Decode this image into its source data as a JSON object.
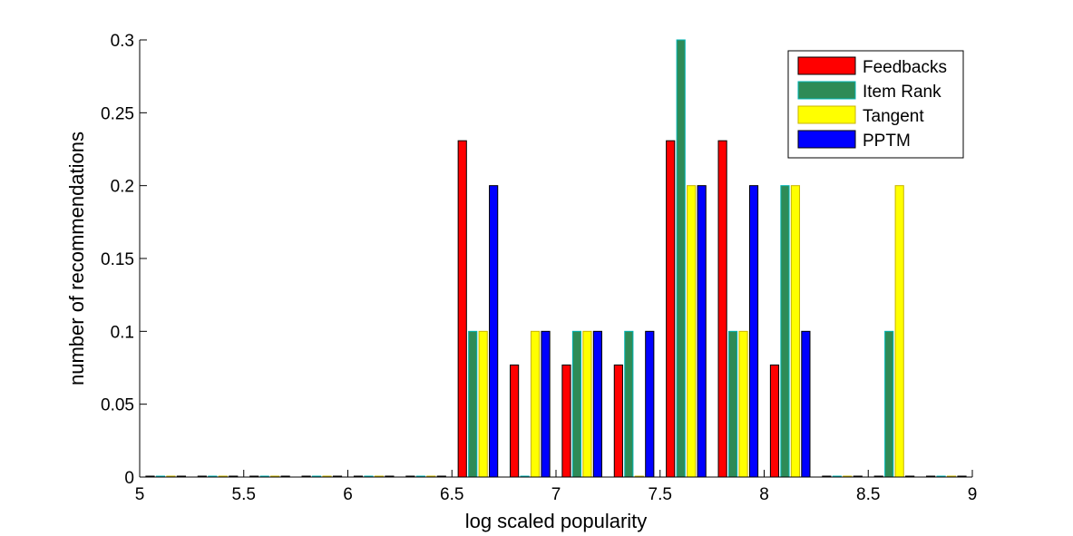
{
  "chart_data": {
    "type": "bar",
    "title": "",
    "xlabel": "log scaled popularity",
    "ylabel": "number of recommendations",
    "xlim": [
      5,
      9
    ],
    "ylim": [
      0,
      0.3
    ],
    "xticks": [
      "5",
      "5.5",
      "6",
      "6.5",
      "7",
      "7.5",
      "8",
      "8.5",
      "9"
    ],
    "yticks": [
      "0",
      "0.05",
      "0.1",
      "0.15",
      "0.2",
      "0.25",
      "0.3"
    ],
    "grid": false,
    "legend_position": "top-right",
    "bin_centers": [
      5.125,
      5.375,
      5.625,
      5.875,
      6.125,
      6.375,
      6.625,
      6.875,
      7.125,
      7.375,
      7.625,
      7.875,
      8.125,
      8.375,
      8.625,
      8.875
    ],
    "series": [
      {
        "name": "Feedbacks",
        "color": "#ff0000",
        "edge": "#000000",
        "values": [
          0,
          0,
          0,
          0,
          0,
          0,
          0.2308,
          0.0769,
          0.0769,
          0.0769,
          0.2308,
          0.2308,
          0.0769,
          0,
          0,
          0
        ]
      },
      {
        "name": "Item Rank",
        "color": "#2e8b57",
        "edge": "#00b4b4",
        "values": [
          0,
          0,
          0,
          0,
          0,
          0,
          0.1,
          0,
          0.1,
          0.1,
          0.3,
          0.1,
          0.2,
          0,
          0.1,
          0
        ]
      },
      {
        "name": "Tangent",
        "color": "#ffff00",
        "edge": "#c8b400",
        "values": [
          0,
          0,
          0,
          0,
          0,
          0,
          0.1,
          0.1,
          0.1,
          0,
          0.2,
          0.1,
          0.2,
          0,
          0.2,
          0
        ]
      },
      {
        "name": "PPTM",
        "color": "#0000ff",
        "edge": "#000000",
        "values": [
          0,
          0,
          0,
          0,
          0,
          0,
          0.2,
          0.1,
          0.1,
          0.1,
          0.2,
          0.2,
          0.1,
          0,
          0,
          0
        ]
      }
    ]
  }
}
